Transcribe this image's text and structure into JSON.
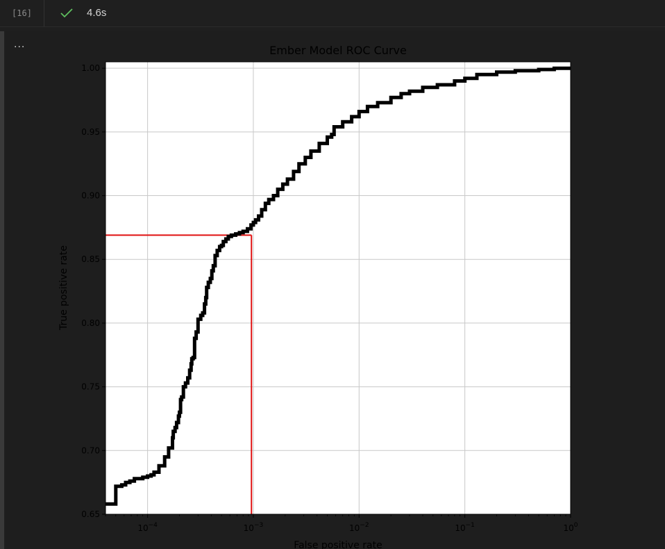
{
  "cell": {
    "execution_count": "[16]",
    "status_icon": "check-icon",
    "duration": "4.6s",
    "more_label": "..."
  },
  "colors": {
    "status_ok": "#5fbf5f",
    "curve": "#000000",
    "threshold": "#e01010",
    "grid": "#c8c8c8"
  },
  "chart_data": {
    "type": "line",
    "title": "Ember Model ROC Curve",
    "xlabel": "False positive rate",
    "ylabel": "True positive rate",
    "xscale": "log",
    "xlim": [
      4e-05,
      1
    ],
    "ylim": [
      0.65,
      1.005
    ],
    "grid": true,
    "x_ticks": [
      {
        "value": 0.0001,
        "base": "10",
        "exp": "−4"
      },
      {
        "value": 0.001,
        "base": "10",
        "exp": "−3"
      },
      {
        "value": 0.01,
        "base": "10",
        "exp": "−2"
      },
      {
        "value": 0.1,
        "base": "10",
        "exp": "−1"
      },
      {
        "value": 1,
        "base": "10",
        "exp": "0"
      }
    ],
    "y_ticks": [
      "0.65",
      "0.70",
      "0.75",
      "0.80",
      "0.85",
      "0.90",
      "0.95",
      "1.00"
    ],
    "series": [
      {
        "x": [
          4e-05,
          5e-05,
          5e-05,
          5.7e-05,
          6.2e-05,
          6.8e-05,
          7.5e-05,
          9e-05,
          0.0001,
          0.000108,
          0.000115,
          0.000128,
          0.000145,
          0.000158,
          0.000172,
          0.000175,
          0.000182,
          0.000188,
          0.000196,
          0.0002,
          0.000205,
          0.00021,
          0.000218,
          0.000228,
          0.00024,
          0.00025,
          0.000258,
          0.000262,
          0.00027,
          0.000278,
          0.000288,
          0.0003,
          0.000318,
          0.000332,
          0.000345,
          0.000355,
          0.000362,
          0.000375,
          0.000392,
          0.000405,
          0.000418,
          0.000435,
          0.000455,
          0.00048,
          0.0005,
          0.00052,
          0.00055,
          0.00058,
          0.00062,
          0.00068,
          0.00074,
          0.0008,
          0.00088,
          0.00095,
          0.001,
          0.00105,
          0.00112,
          0.0012,
          0.0013,
          0.0014,
          0.00155,
          0.0017,
          0.0019,
          0.0021,
          0.0024,
          0.0027,
          0.0031,
          0.0035,
          0.0042,
          0.005,
          0.0055,
          0.0058,
          0.007,
          0.0085,
          0.01,
          0.012,
          0.015,
          0.02,
          0.025,
          0.03,
          0.04,
          0.055,
          0.08,
          0.1,
          0.13,
          0.2,
          0.3,
          0.5,
          0.7,
          1.0
        ],
        "y": [
          0.658,
          0.658,
          0.672,
          0.673,
          0.675,
          0.676,
          0.678,
          0.679,
          0.68,
          0.681,
          0.683,
          0.688,
          0.695,
          0.702,
          0.71,
          0.715,
          0.718,
          0.722,
          0.727,
          0.73,
          0.74,
          0.742,
          0.75,
          0.753,
          0.757,
          0.763,
          0.768,
          0.772,
          0.773,
          0.788,
          0.793,
          0.803,
          0.806,
          0.808,
          0.815,
          0.82,
          0.828,
          0.832,
          0.835,
          0.841,
          0.845,
          0.853,
          0.857,
          0.86,
          0.861,
          0.864,
          0.866,
          0.868,
          0.869,
          0.87,
          0.871,
          0.872,
          0.874,
          0.877,
          0.879,
          0.881,
          0.884,
          0.889,
          0.894,
          0.897,
          0.9,
          0.905,
          0.909,
          0.913,
          0.919,
          0.925,
          0.93,
          0.935,
          0.941,
          0.946,
          0.948,
          0.954,
          0.958,
          0.962,
          0.966,
          0.97,
          0.973,
          0.977,
          0.98,
          0.982,
          0.985,
          0.987,
          0.99,
          0.992,
          0.995,
          0.997,
          0.998,
          0.999,
          1.0,
          1.0
        ]
      }
    ],
    "threshold": {
      "fpr": 0.00096,
      "tpr": 0.869
    }
  }
}
